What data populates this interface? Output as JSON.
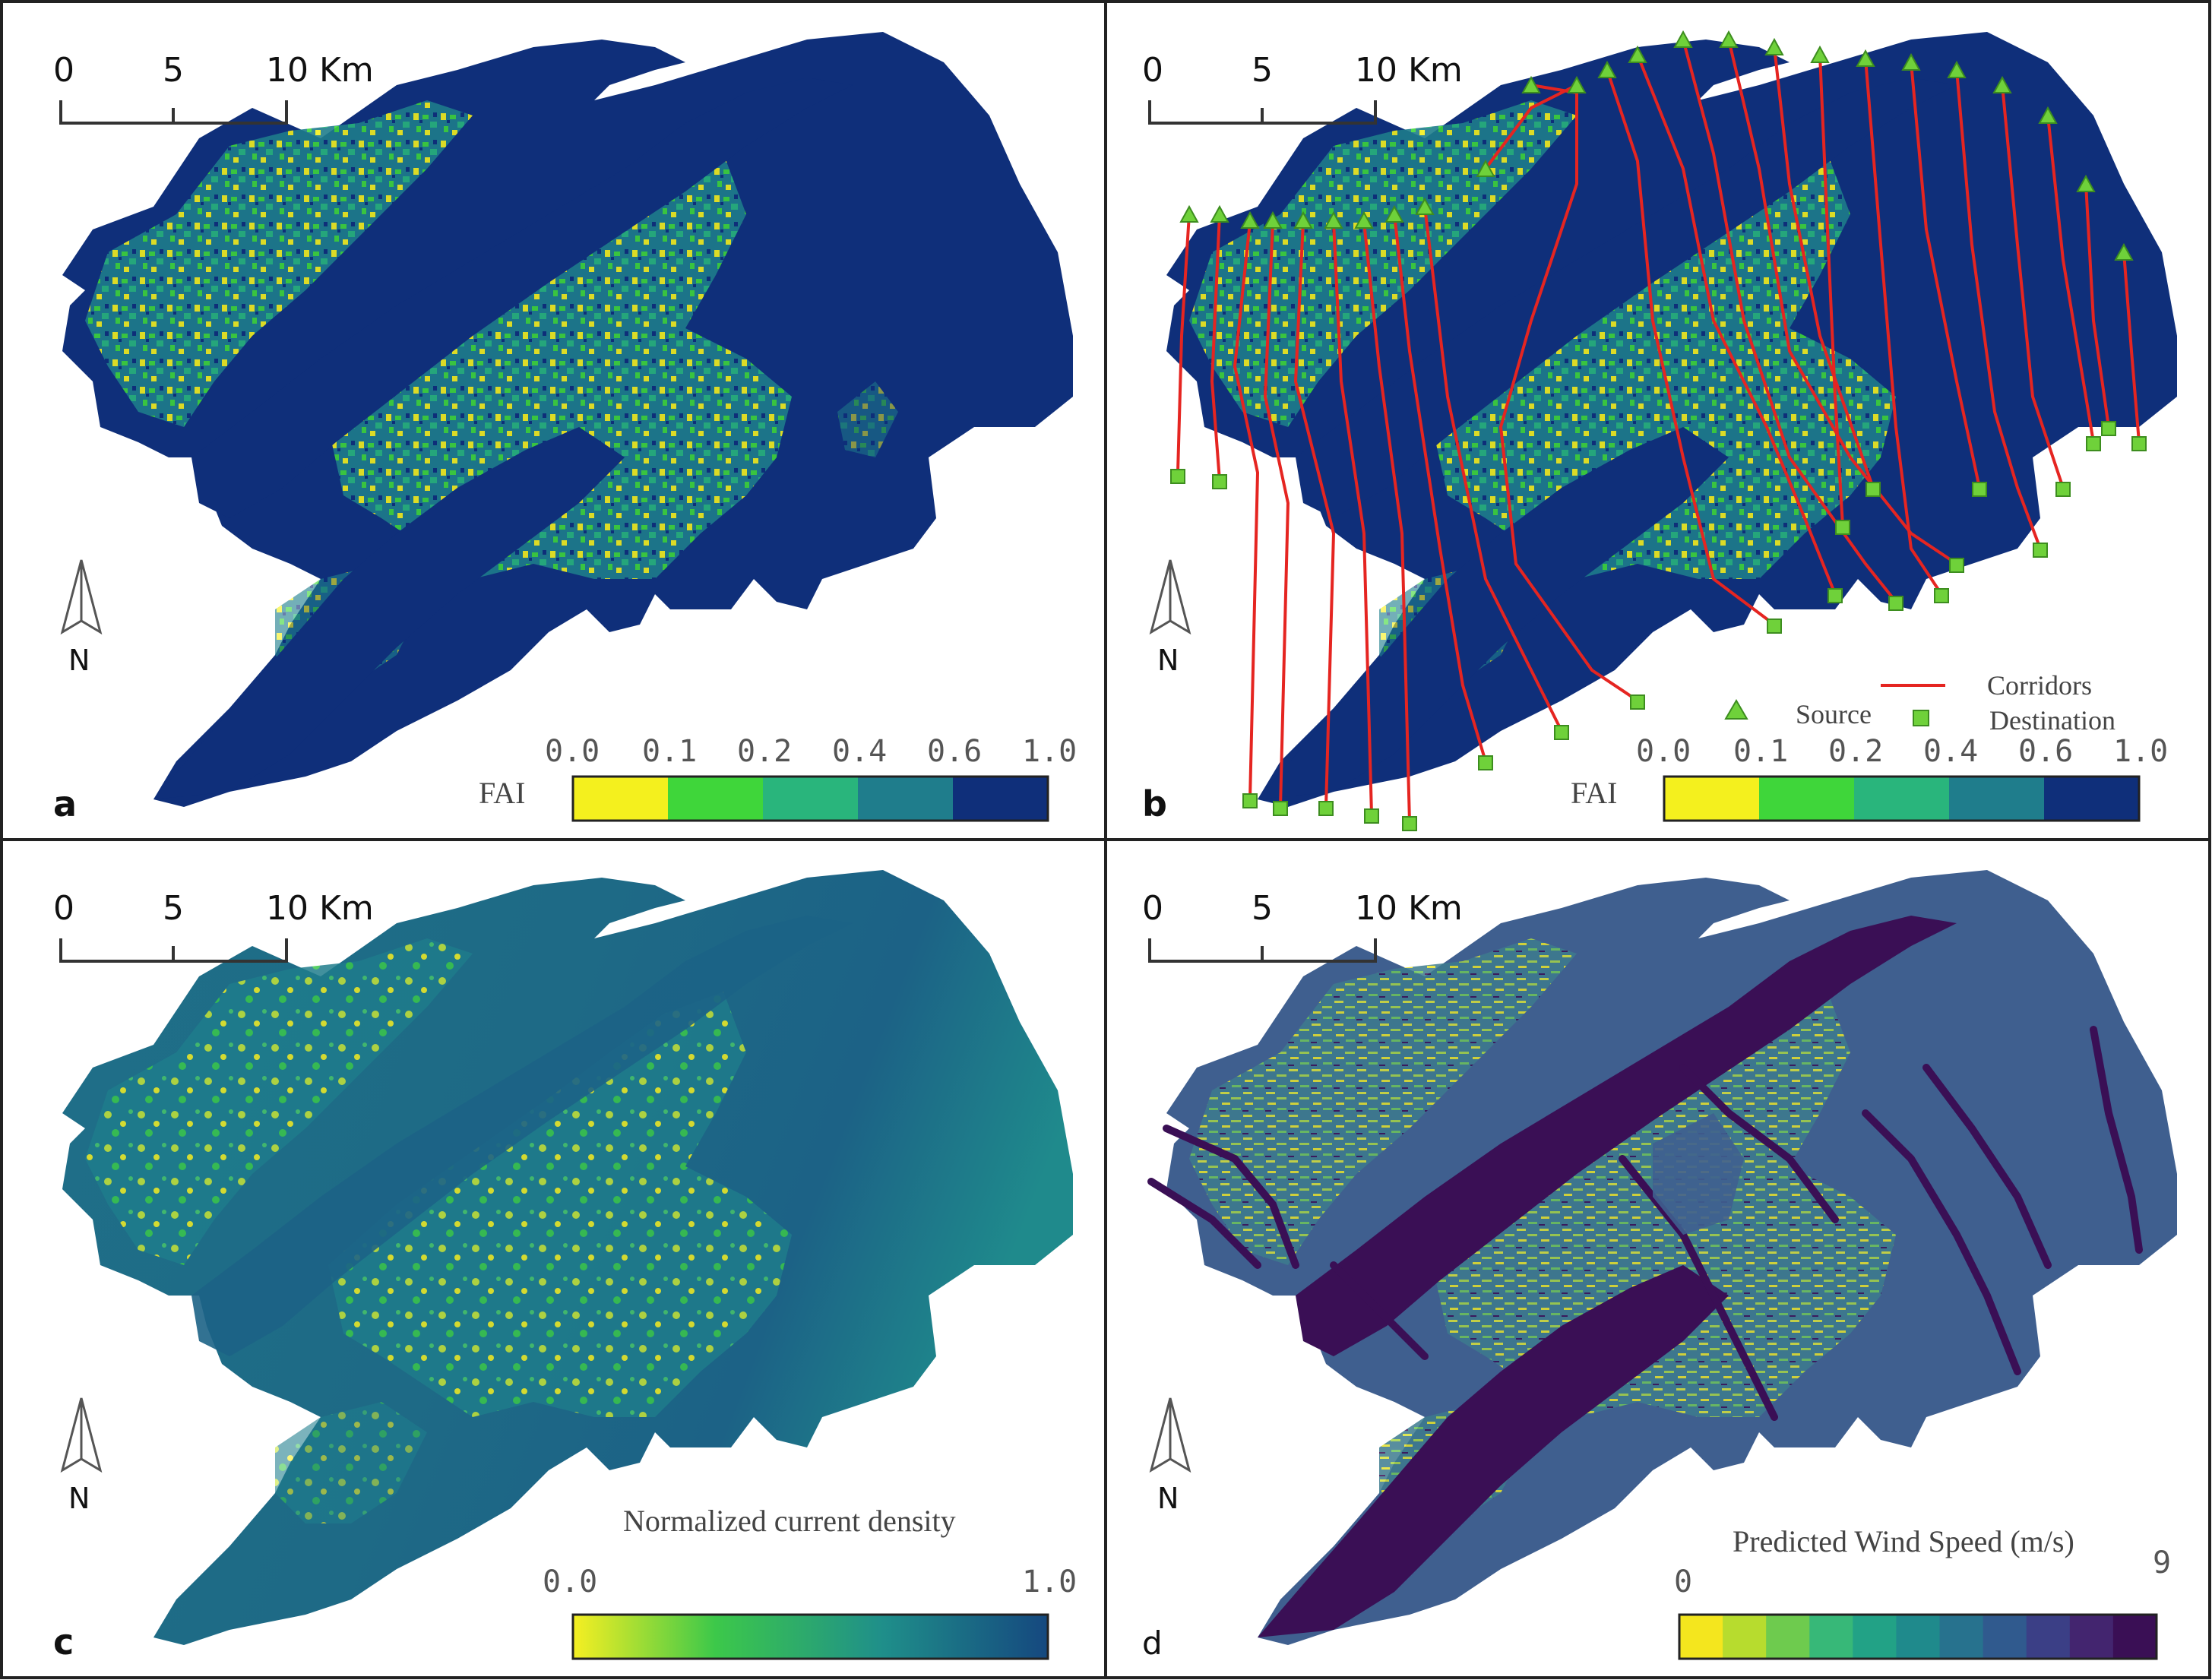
{
  "figure": {
    "panels": [
      {
        "id": "a",
        "letter": "a",
        "scalebar": {
          "ticks": [
            "0",
            "5",
            "10 Km"
          ]
        },
        "north": "N",
        "legend": {
          "title": "FAI",
          "tick_labels": [
            "0.0",
            "0.1",
            "0.2",
            "0.4",
            "0.6",
            "1.0"
          ],
          "colors": [
            "#f4f01e",
            "#3fd63a",
            "#29b57c",
            "#1f7d8c",
            "#0f2f7a"
          ]
        }
      },
      {
        "id": "b",
        "letter": "b",
        "scalebar": {
          "ticks": [
            "0",
            "5",
            "10 Km"
          ]
        },
        "north": "N",
        "overlay_legend": {
          "corridors": "Corridors",
          "source": "Source",
          "destination": "Destination",
          "corridor_color": "#e52521",
          "point_color": "#6fd13a"
        },
        "legend": {
          "title": "FAI",
          "tick_labels": [
            "0.0",
            "0.1",
            "0.2",
            "0.4",
            "0.6",
            "1.0"
          ],
          "colors": [
            "#f4f01e",
            "#3fd63a",
            "#29b57c",
            "#1f7d8c",
            "#0f2f7a"
          ]
        }
      },
      {
        "id": "c",
        "letter": "c",
        "scalebar": {
          "ticks": [
            "0",
            "5",
            "10 Km"
          ]
        },
        "north": "N",
        "legend": {
          "title": "Normalized current density",
          "tick_labels": [
            "0.0",
            "1.0"
          ],
          "gradient": [
            "#f6ef22",
            "#3cc84a",
            "#1f8f8a",
            "#15487f"
          ]
        }
      },
      {
        "id": "d",
        "letter": "d",
        "scalebar": {
          "ticks": [
            "0",
            "5",
            "10 Km"
          ]
        },
        "north": "N",
        "legend": {
          "title": "Predicted Wind Speed (m/s)",
          "tick_labels": [
            "0",
            "9"
          ],
          "colors": [
            "#f4e61e",
            "#b7dc2e",
            "#6ecb4e",
            "#37b878",
            "#22a286",
            "#1f8a8c",
            "#27728e",
            "#305a8e",
            "#3b3f86",
            "#43256f",
            "#3a0f55"
          ]
        }
      }
    ],
    "colors": {
      "base": "#0f2f7a",
      "river_d": "#3a0f55",
      "land_d": "#3f5f8f",
      "land_c": "#1f6f88"
    }
  }
}
